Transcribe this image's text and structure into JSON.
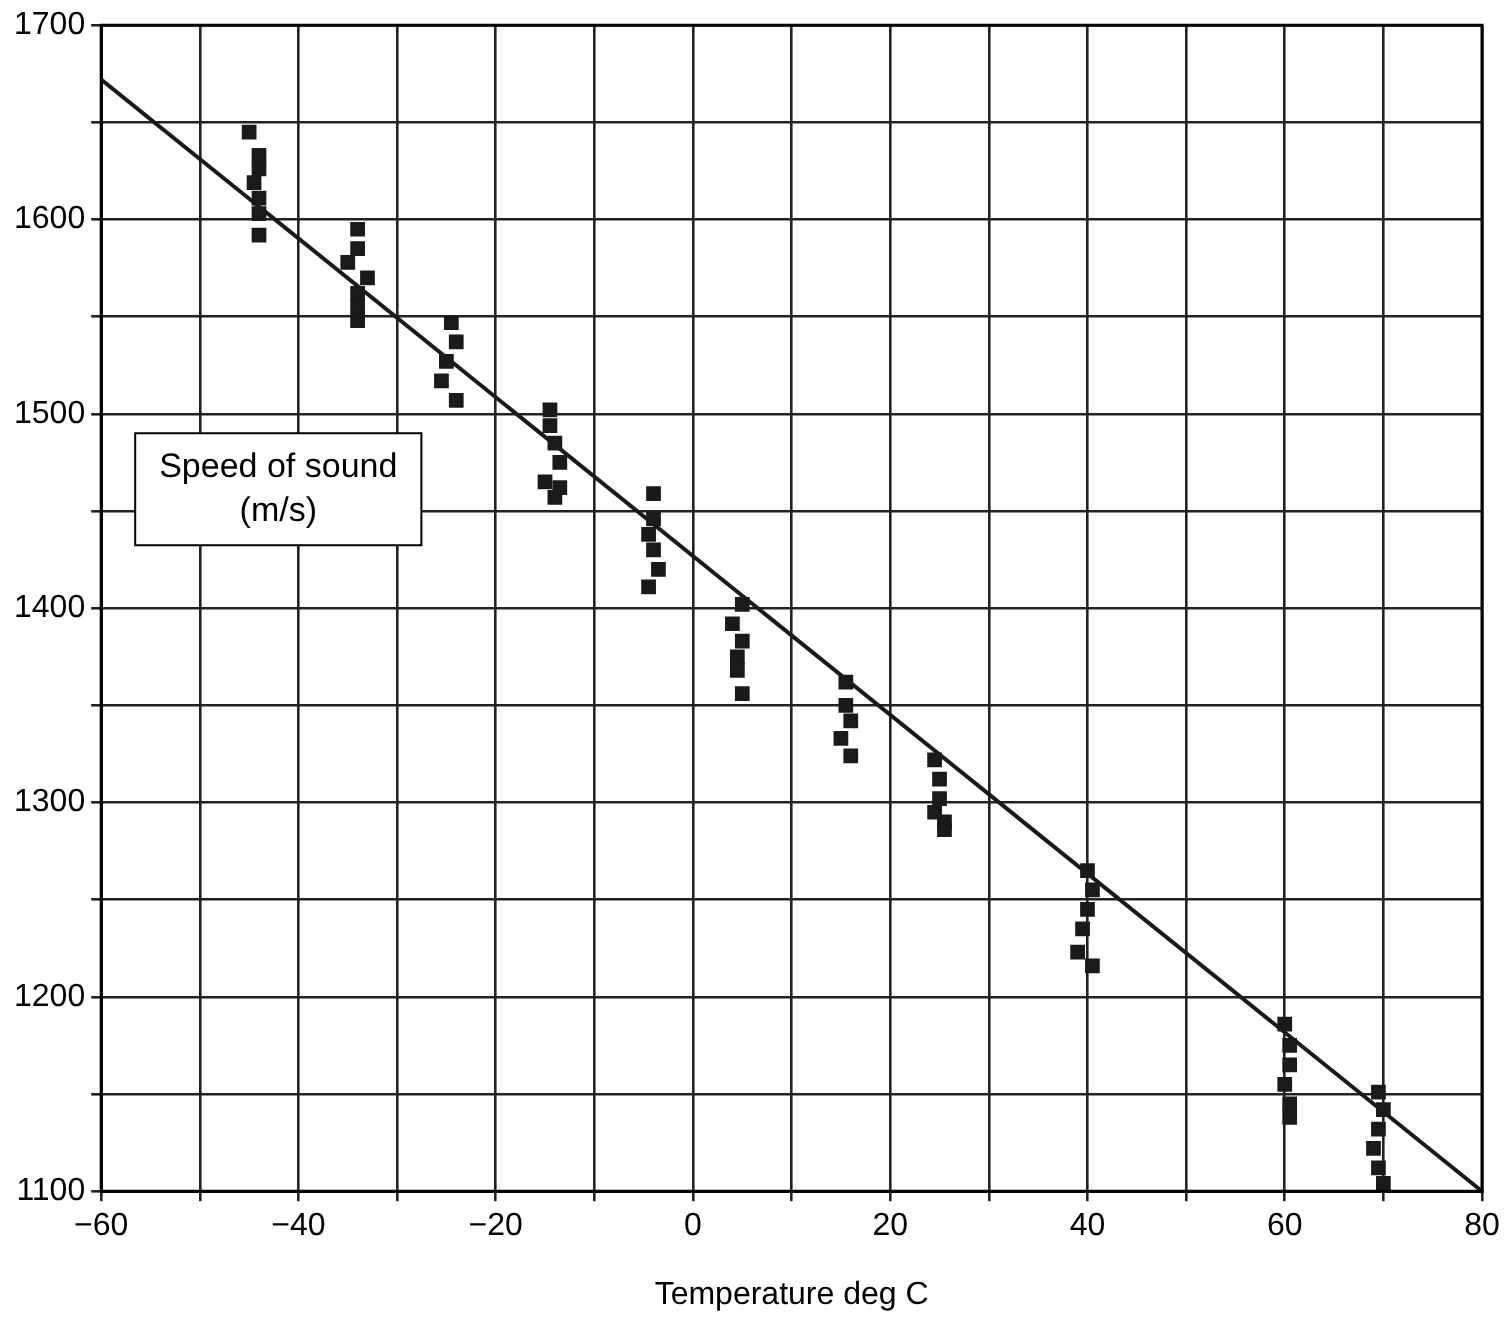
{
  "chart_data": {
    "type": "scatter",
    "xlabel": "Temperature deg C",
    "ylabel": "Speed of sound\n(m/s)",
    "marker": "square",
    "grid": true,
    "legend": false,
    "xlim": [
      -60,
      80
    ],
    "ylim": [
      1100,
      1700
    ],
    "xticks": [
      {
        "value": -60,
        "label": "−60"
      },
      {
        "value": -50,
        "label": null
      },
      {
        "value": -40,
        "label": "−40"
      },
      {
        "value": -30,
        "label": null
      },
      {
        "value": -20,
        "label": "−20"
      },
      {
        "value": -10,
        "label": null
      },
      0,
      {
        "value": 10,
        "label": null
      },
      20,
      {
        "value": 30,
        "label": null
      },
      40,
      {
        "value": 50,
        "label": null
      },
      60,
      {
        "value": 70,
        "label": null
      },
      80
    ],
    "yticks": [
      1100,
      {
        "value": 1150,
        "label": null
      },
      1200,
      {
        "value": 1250,
        "label": null
      },
      1300,
      {
        "value": 1350,
        "label": null
      },
      1400,
      {
        "value": 1450,
        "label": null
      },
      1500,
      {
        "value": 1550,
        "label": null
      },
      1600,
      {
        "value": 1650,
        "label": null
      },
      1700
    ],
    "series": [
      {
        "type": "scatter",
        "color": "#1a1a1a",
        "x": [
          -45,
          -44,
          -44,
          -44.5,
          -44,
          -44,
          -44,
          -34,
          -34,
          -35,
          -33,
          -34,
          -34,
          -34,
          -24.5,
          -24,
          -25,
          -25.5,
          -24,
          -14.5,
          -14.5,
          -14,
          -13.5,
          -15,
          -13.5,
          -14,
          -4,
          -4,
          -4.5,
          -4,
          -3.5,
          -4.5,
          5,
          4,
          5,
          4.5,
          4.5,
          5,
          15.5,
          15.5,
          16,
          15,
          16,
          24.5,
          25,
          25,
          24.5,
          25.5,
          25.5,
          40,
          40.5,
          40,
          39.5,
          39,
          40.5,
          60,
          60.5,
          60.5,
          60,
          60.5,
          60.5,
          69.5,
          70,
          69.5,
          69,
          69.5,
          70
        ],
        "values": [
          1645,
          1633,
          1626,
          1619,
          1611,
          1603,
          1592,
          1595,
          1585,
          1578,
          1570,
          1562,
          1555,
          1548,
          1547,
          1537,
          1527,
          1517,
          1507,
          1502,
          1494,
          1485,
          1475,
          1465,
          1462,
          1457,
          1459,
          1446,
          1438,
          1430,
          1420,
          1411,
          1402,
          1392,
          1383,
          1375,
          1368,
          1356,
          1362,
          1350,
          1342,
          1333,
          1324,
          1322,
          1312,
          1302,
          1295,
          1290,
          1286,
          1265,
          1255,
          1245,
          1235,
          1223,
          1216,
          1186,
          1175,
          1165,
          1155,
          1145,
          1138,
          1151,
          1142,
          1132,
          1122,
          1112,
          1104
        ]
      },
      {
        "type": "line",
        "color": "#1a1a1a",
        "marker": "none",
        "x": [
          -60,
          80
        ],
        "values": [
          1672,
          1100
        ]
      }
    ]
  }
}
